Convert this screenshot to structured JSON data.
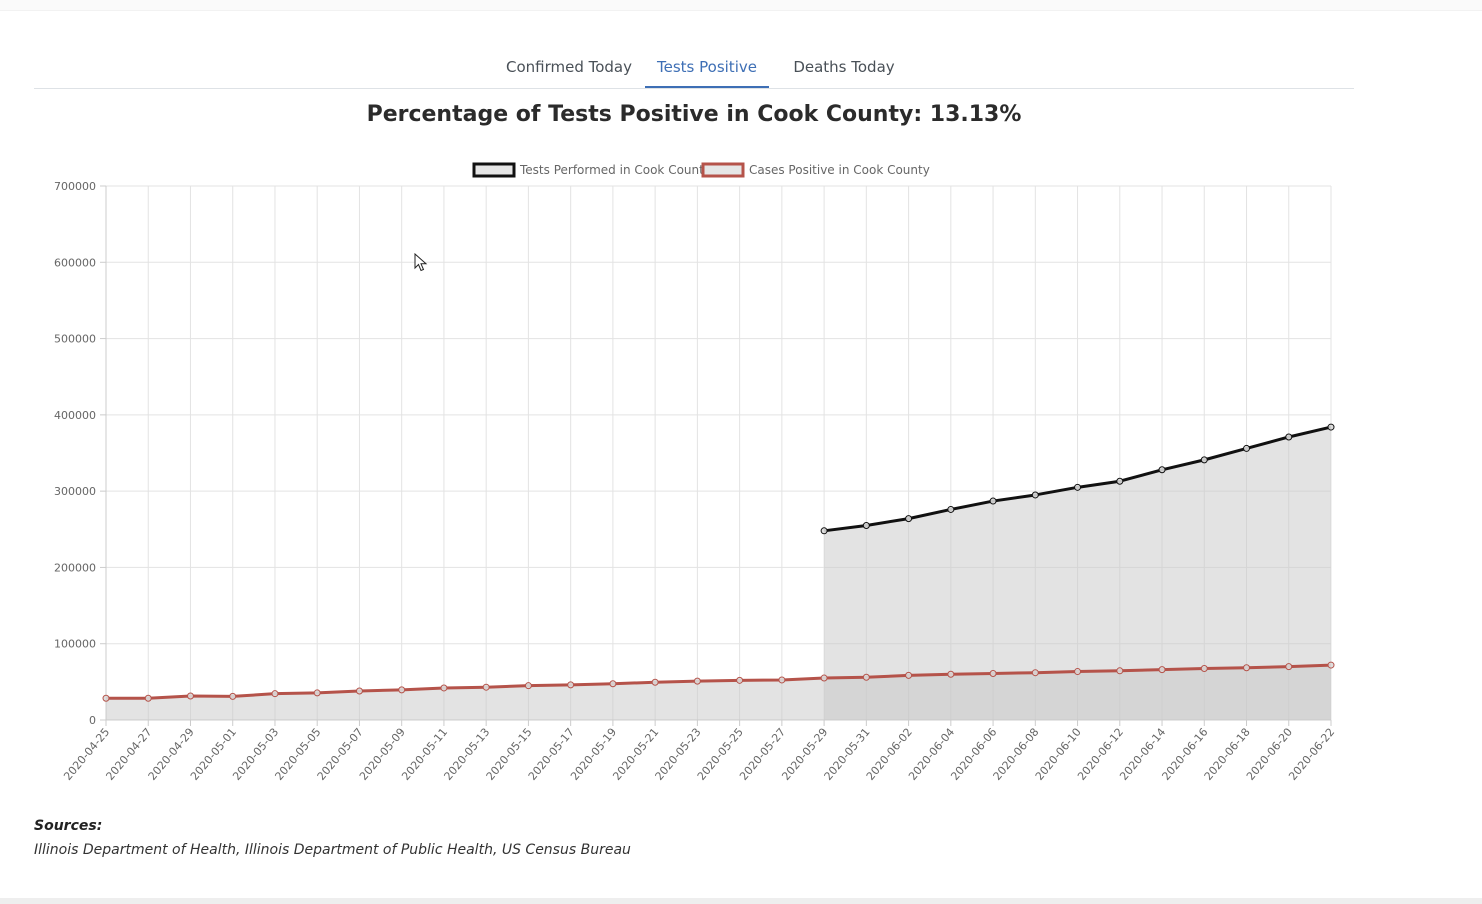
{
  "tabs": [
    {
      "label": "Confirmed Today",
      "active": false
    },
    {
      "label": "Tests Positive",
      "active": true
    },
    {
      "label": "Deaths Today",
      "active": false
    }
  ],
  "chart_data": {
    "type": "line",
    "title": "Percentage of Tests Positive in Cook County: 13.13%",
    "xlabel": "",
    "ylabel": "",
    "ylim": [
      0,
      700000
    ],
    "yticks": [
      "0",
      "100000",
      "200000",
      "300000",
      "400000",
      "500000",
      "600000",
      "700000"
    ],
    "grid": true,
    "legend_position": "top",
    "x": [
      "2020-04-25",
      "2020-04-26",
      "2020-04-27",
      "2020-04-28",
      "2020-04-29",
      "2020-04-30",
      "2020-05-01",
      "2020-05-02",
      "2020-05-03",
      "2020-05-04",
      "2020-05-05",
      "2020-05-06",
      "2020-05-07",
      "2020-05-08",
      "2020-05-09",
      "2020-05-10",
      "2020-05-11",
      "2020-05-12",
      "2020-05-13",
      "2020-05-14",
      "2020-05-15",
      "2020-05-16",
      "2020-05-17",
      "2020-05-18",
      "2020-05-19",
      "2020-05-20",
      "2020-05-21",
      "2020-05-22",
      "2020-05-23",
      "2020-05-24",
      "2020-05-25",
      "2020-05-26",
      "2020-05-27",
      "2020-05-28",
      "2020-05-29",
      "2020-05-30",
      "2020-05-31",
      "2020-06-01",
      "2020-06-02",
      "2020-06-03",
      "2020-06-04",
      "2020-06-05",
      "2020-06-06",
      "2020-06-07",
      "2020-06-08",
      "2020-06-09",
      "2020-06-10",
      "2020-06-11",
      "2020-06-12",
      "2020-06-13",
      "2020-06-14",
      "2020-06-15",
      "2020-06-16",
      "2020-06-17",
      "2020-06-18",
      "2020-06-19",
      "2020-06-20",
      "2020-06-21",
      "2020-06-22"
    ],
    "xticks": [
      "2020-04-25",
      "2020-04-27",
      "2020-04-29",
      "2020-05-01",
      "2020-05-03",
      "2020-05-05",
      "2020-05-07",
      "2020-05-09",
      "2020-05-11",
      "2020-05-13",
      "2020-05-15",
      "2020-05-17",
      "2020-05-19",
      "2020-05-21",
      "2020-05-23",
      "2020-05-25",
      "2020-05-27",
      "2020-05-29",
      "2020-05-31",
      "2020-06-02",
      "2020-06-04",
      "2020-06-06",
      "2020-06-08",
      "2020-06-10",
      "2020-06-12",
      "2020-06-14",
      "2020-06-16",
      "2020-06-18",
      "2020-06-20",
      "2020-06-22"
    ],
    "series": [
      {
        "name": "Tests Performed in Cook County",
        "color": "#111111",
        "fill": "rgba(200,200,200,0.5)",
        "points": [
          [
            "2020-05-29",
            248000
          ],
          [
            "2020-05-31",
            255000
          ],
          [
            "2020-06-02",
            264000
          ],
          [
            "2020-06-04",
            276000
          ],
          [
            "2020-06-06",
            287000
          ],
          [
            "2020-06-08",
            295000
          ],
          [
            "2020-06-10",
            305000
          ],
          [
            "2020-06-12",
            313000
          ],
          [
            "2020-06-14",
            328000
          ],
          [
            "2020-06-16",
            341000
          ],
          [
            "2020-06-18",
            356000
          ],
          [
            "2020-06-20",
            371000
          ],
          [
            "2020-06-22",
            384000
          ]
        ]
      },
      {
        "name": "Cases Positive in Cook County",
        "color": "#b5534a",
        "fill": "rgba(200,200,200,0.5)",
        "points": [
          [
            "2020-04-25",
            28500
          ],
          [
            "2020-04-27",
            28500
          ],
          [
            "2020-04-29",
            31500
          ],
          [
            "2020-05-01",
            31000
          ],
          [
            "2020-05-03",
            34500
          ],
          [
            "2020-05-05",
            35500
          ],
          [
            "2020-05-07",
            38000
          ],
          [
            "2020-05-09",
            39500
          ],
          [
            "2020-05-11",
            42000
          ],
          [
            "2020-05-13",
            43000
          ],
          [
            "2020-05-15",
            45000
          ],
          [
            "2020-05-17",
            46000
          ],
          [
            "2020-05-19",
            47500
          ],
          [
            "2020-05-21",
            49500
          ],
          [
            "2020-05-23",
            51000
          ],
          [
            "2020-05-25",
            52000
          ],
          [
            "2020-05-27",
            52500
          ],
          [
            "2020-05-29",
            55000
          ],
          [
            "2020-05-31",
            56000
          ],
          [
            "2020-06-02",
            58500
          ],
          [
            "2020-06-04",
            60000
          ],
          [
            "2020-06-06",
            61000
          ],
          [
            "2020-06-08",
            62000
          ],
          [
            "2020-06-10",
            63500
          ],
          [
            "2020-06-12",
            64500
          ],
          [
            "2020-06-14",
            66000
          ],
          [
            "2020-06-16",
            67500
          ],
          [
            "2020-06-18",
            68500
          ],
          [
            "2020-06-20",
            70000
          ],
          [
            "2020-06-22",
            72000
          ]
        ]
      }
    ]
  },
  "sources": {
    "label": "Sources:",
    "text": "Illinois Department of Health, Illinois Department of Public Health, US Census Bureau"
  }
}
